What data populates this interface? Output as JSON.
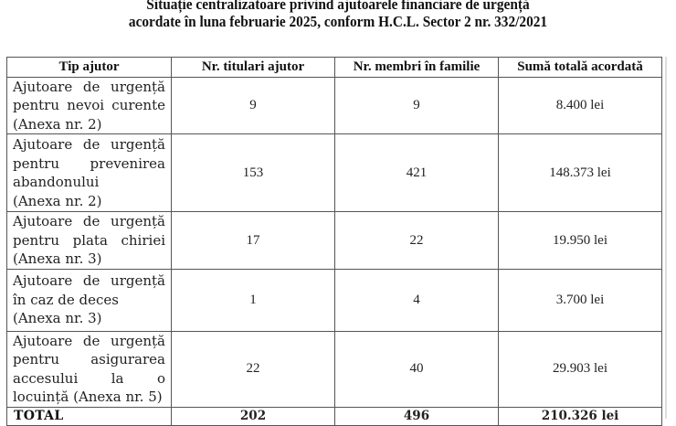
{
  "document": {
    "title_line1": "Situație centralizatoare privind ajutoarele financiare de urgență",
    "title_line2": "acordate în luna februarie 2025, conform H.C.L. Sector 2 nr. 332/2021"
  },
  "table": {
    "headers": [
      "Tip ajutor",
      "Nr. titulari ajutor",
      "Nr. membri în familie",
      "Sumă totală acordată"
    ],
    "rows": [
      {
        "type": "Ajutoare de urgență pentru nevoi curente (Anexa nr. 2)",
        "titulari": "9",
        "membri": "9",
        "suma": "8.400 lei"
      },
      {
        "type_line1": "Ajutoare de urgență pentru prevenirea abandonului",
        "type_line2": "(Anexa nr. 2)",
        "titulari": "153",
        "membri": "421",
        "suma": "148.373 lei"
      },
      {
        "type": "Ajutoare de urgență pentru plata chiriei (Anexa nr. 3)",
        "titulari": "17",
        "membri": "22",
        "suma": "19.950 lei"
      },
      {
        "type_line1": "Ajutoare de urgență în caz de deces",
        "type_line2": "(Anexa nr. 3)",
        "titulari": "1",
        "membri": "4",
        "suma": "3.700 lei"
      },
      {
        "type": "Ajutoare de urgență pentru asigurarea accesului la o locuință (Anexa nr. 5)",
        "titulari": "22",
        "membri": "40",
        "suma": "29.903 lei"
      }
    ],
    "total": {
      "label": "TOTAL",
      "titulari": "202",
      "membri": "496",
      "suma": "210.326 lei"
    }
  }
}
